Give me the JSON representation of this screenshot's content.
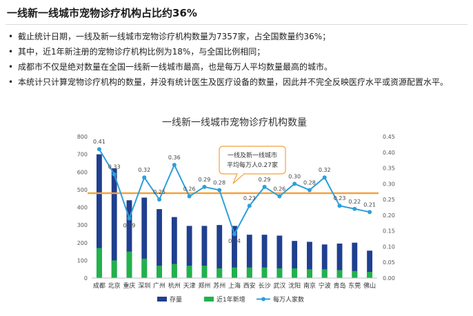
{
  "page": {
    "title": "一线新一线城市宠物诊疗机构占比约36%",
    "bullets": [
      "截止统计日期，一线及新一线城市宠物诊疗机构数量为7357家，占全国数量约36%；",
      "其中，近1年新注册的宠物诊疗机构比例为18%，与全国比例相同；",
      "成都市不仅是绝对数量在全国一线新一线城市最高，也是每万人平均数量最高的城市。",
      "本统计只计算宠物诊疗机构的数量，并没有统计医生及医疗设备的数量，因此并不完全反映医疗水平或资源配置水平。"
    ]
  },
  "colors": {
    "stock": "#1f3f8f",
    "new": "#22b14c",
    "per10k": "#2e9fd8",
    "avgline": "#f5a13a",
    "annot_border": "#f5a13a"
  },
  "chart_data": {
    "type": "bar+line",
    "title": "一线新一线城市宠物诊疗机构数量",
    "categories": [
      "成都",
      "北京",
      "重庆",
      "深圳",
      "广州",
      "杭州",
      "天津",
      "郑州",
      "苏州",
      "上海",
      "西安",
      "长沙",
      "武汉",
      "沈阳",
      "南京",
      "宁波",
      "青岛",
      "东莞",
      "佛山"
    ],
    "series": [
      {
        "name": "存量",
        "axis": "left",
        "kind": "bar",
        "values": [
          700,
          620,
          440,
          455,
          390,
          345,
          295,
          295,
          300,
          295,
          245,
          245,
          240,
          210,
          205,
          190,
          195,
          200,
          155
        ]
      },
      {
        "name": "近1年新增",
        "axis": "left",
        "kind": "bar",
        "values": [
          170,
          100,
          150,
          110,
          70,
          80,
          70,
          70,
          55,
          60,
          60,
          60,
          55,
          55,
          50,
          50,
          45,
          40,
          35
        ]
      },
      {
        "name": "每万人家数",
        "axis": "right",
        "kind": "line",
        "values": [
          0.41,
          0.33,
          0.19,
          0.32,
          0.25,
          0.36,
          0.26,
          0.29,
          0.28,
          0.14,
          0.23,
          0.29,
          0.26,
          0.3,
          0.28,
          0.32,
          0.23,
          0.22,
          0.21
        ]
      }
    ],
    "data_labels": [
      "0.41",
      "0.33",
      "0.19",
      "0.32",
      "0.25",
      "0.36",
      "0.26",
      "0.29",
      "0.28",
      "0.14",
      "0.23",
      "0.29",
      "0.26",
      "0.30",
      "0.28",
      "0.32",
      "0.23",
      "0.22",
      "0.21"
    ],
    "y_left": {
      "min": 0,
      "max": 800,
      "ticks": [
        "0",
        "100",
        "200",
        "300",
        "400",
        "500",
        "600",
        "700",
        "800"
      ]
    },
    "y_right": {
      "min": 0,
      "max": 0.45,
      "ticks": [
        "0.00",
        "0.05",
        "0.10",
        "0.15",
        "0.20",
        "0.25",
        "0.30",
        "0.35",
        "0.40",
        "0.45"
      ]
    },
    "average": {
      "value": 0.27,
      "label_lines": [
        "一线及新一线城市",
        "平均每万人0.27家"
      ]
    },
    "legend": [
      "存量",
      "近1年新增",
      "每万人家数"
    ],
    "legend_position": "bottom",
    "grid": false
  }
}
